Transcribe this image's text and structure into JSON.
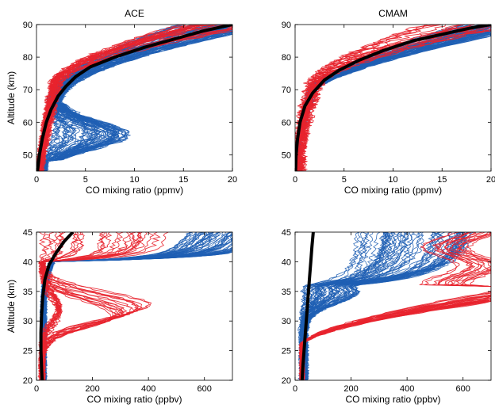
{
  "colors": {
    "profile_a": "#1f5fb4",
    "profile_b": "#e8232e",
    "mean": "#000000"
  },
  "chart_data": [
    {
      "type": "line",
      "title": "ACE",
      "xlabel": "CO mixing ratio (ppmv)",
      "ylabel": "Altitude (km)",
      "xlim": [
        0,
        20
      ],
      "ylim": [
        45,
        90
      ],
      "xticks": [
        0,
        5,
        10,
        15,
        20
      ],
      "yticks": [
        50,
        60,
        70,
        80,
        90
      ],
      "mean_profile": {
        "x": [
          0.1,
          0.3,
          0.6,
          1.0,
          1.5,
          2.2,
          3.0,
          4.0,
          5.5,
          8.0,
          11.0,
          14.0,
          17.0,
          20.0
        ],
        "y": [
          45,
          50,
          55,
          60,
          64,
          68,
          71,
          74,
          77,
          80,
          83,
          85.5,
          88,
          90
        ]
      }
    },
    {
      "type": "line",
      "title": "CMAM",
      "xlabel": "CO mixing ratio (ppmv)",
      "ylabel": "",
      "xlim": [
        0,
        20
      ],
      "ylim": [
        45,
        90
      ],
      "xticks": [
        0,
        5,
        10,
        15,
        20
      ],
      "yticks": [
        50,
        60,
        70,
        80,
        90
      ],
      "mean_profile": {
        "x": [
          0.05,
          0.1,
          0.25,
          0.5,
          1.0,
          1.8,
          3.0,
          4.5,
          6.5,
          9.0,
          12.0,
          15.0,
          18.0,
          20.0
        ],
        "y": [
          45,
          50,
          55,
          60,
          65,
          69,
          73,
          76,
          79,
          82,
          85,
          87,
          89,
          90
        ]
      }
    },
    {
      "type": "line",
      "title": "",
      "xlabel": "CO mixing ratio (ppbv)",
      "ylabel": "Altitude (km)",
      "xlim": [
        0,
        700
      ],
      "ylim": [
        20,
        45
      ],
      "xticks": [
        0,
        200,
        400,
        600
      ],
      "yticks": [
        20,
        25,
        30,
        35,
        40,
        45
      ],
      "mean_profile": {
        "x": [
          20,
          18,
          16,
          16,
          18,
          22,
          30,
          45,
          70,
          100,
          130
        ],
        "y": [
          20,
          22,
          25,
          28,
          31,
          34,
          37,
          39.5,
          41.5,
          43.5,
          45
        ]
      }
    },
    {
      "type": "line",
      "title": "",
      "xlabel": "CO mixing ratio (ppbv)",
      "ylabel": "",
      "xlim": [
        0,
        700
      ],
      "ylim": [
        20,
        45
      ],
      "xticks": [
        0,
        200,
        400,
        600
      ],
      "yticks": [
        20,
        25,
        30,
        35,
        40,
        45
      ],
      "mean_profile": {
        "x": [
          25,
          28,
          32,
          36,
          40,
          44,
          48,
          52,
          56,
          60,
          65
        ],
        "y": [
          20,
          22.5,
          25,
          27.5,
          30,
          32.5,
          35,
          37.5,
          40,
          42.5,
          45
        ]
      }
    }
  ]
}
